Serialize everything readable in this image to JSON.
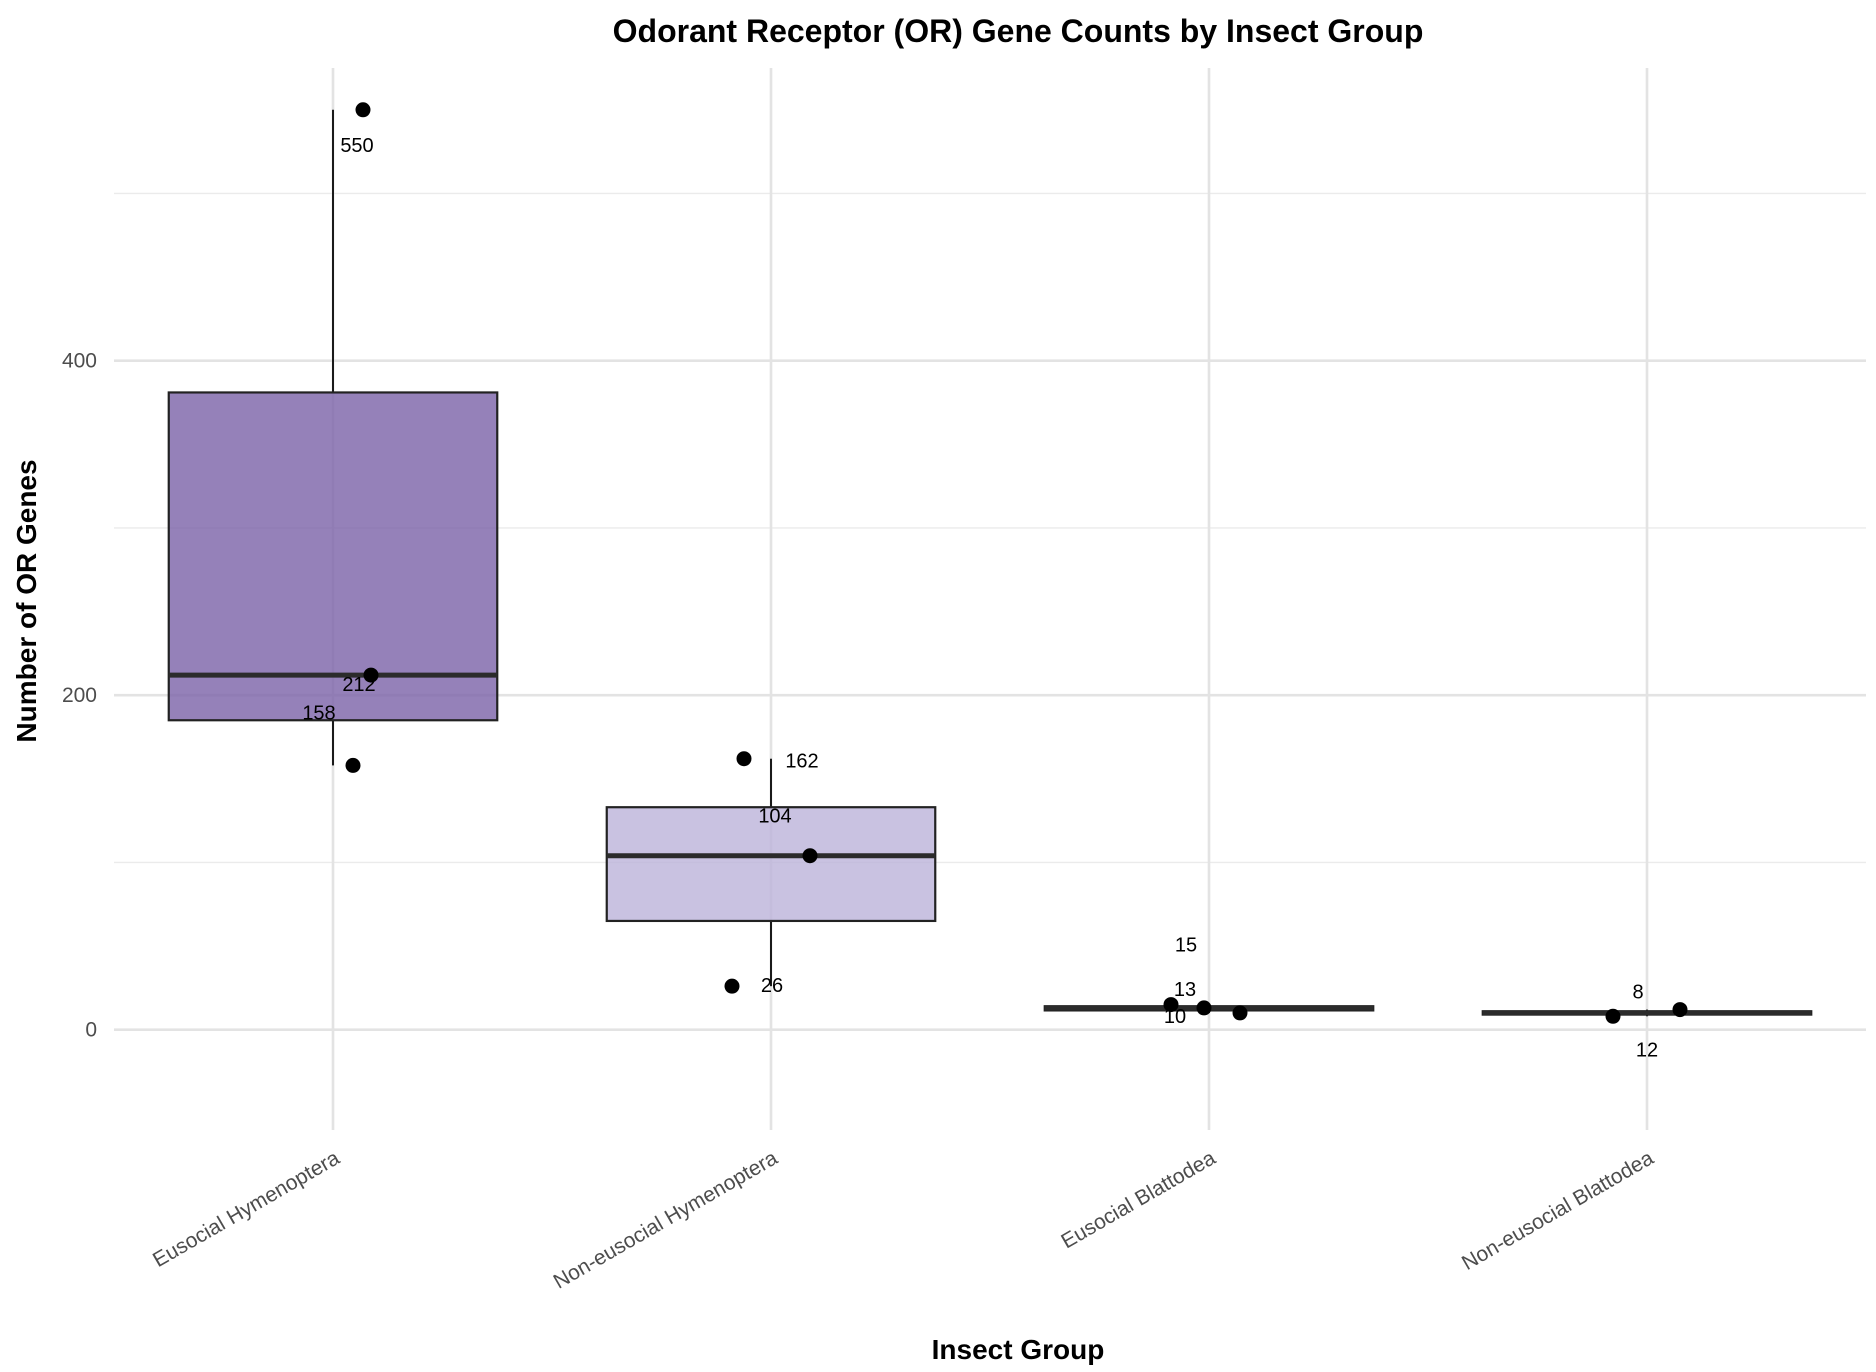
{
  "chart_data": {
    "type": "box",
    "title": "Odorant Receptor (OR) Gene Counts by Insect Group",
    "xlabel": "Insect Group",
    "ylabel": "Number of OR Genes",
    "ylim": [
      -60,
      575
    ],
    "yticks": [
      0,
      200,
      400
    ],
    "grid": true,
    "legend": "none",
    "categories": [
      "Eusocial Hymenoptera",
      "Non-eusocial Hymenoptera",
      "Eusocial Blattodea",
      "Non-eusocial Blattodea"
    ],
    "boxes": [
      {
        "category": "Eusocial Hymenoptera",
        "whisker_low": 158,
        "q1": 185,
        "median": 212,
        "q3": 381,
        "whisker_high": 550,
        "color": "#7b62a8"
      },
      {
        "category": "Non-eusocial Hymenoptera",
        "whisker_low": 26,
        "q1": 65,
        "median": 104,
        "q3": 133,
        "whisker_high": 162,
        "color": "#bcb3d9"
      },
      {
        "category": "Eusocial Blattodea",
        "whisker_low": 10,
        "q1": 11.5,
        "median": 13,
        "q3": 14,
        "whisker_high": 15,
        "color": "#efedf6"
      },
      {
        "category": "Non-eusocial Blattodea",
        "whisker_low": 8,
        "q1": 9,
        "median": 10,
        "q3": 11,
        "whisker_high": 12,
        "color": "#fcfbfd"
      }
    ],
    "points": [
      {
        "category": "Eusocial Hymenoptera",
        "value": 550,
        "label": "550"
      },
      {
        "category": "Eusocial Hymenoptera",
        "value": 212,
        "label": "212"
      },
      {
        "category": "Eusocial Hymenoptera",
        "value": 158,
        "label": "158"
      },
      {
        "category": "Non-eusocial Hymenoptera",
        "value": 162,
        "label": "162"
      },
      {
        "category": "Non-eusocial Hymenoptera",
        "value": 104,
        "label": "104"
      },
      {
        "category": "Non-eusocial Hymenoptera",
        "value": 26,
        "label": "26"
      },
      {
        "category": "Eusocial Blattodea",
        "value": 15,
        "label": "15"
      },
      {
        "category": "Eusocial Blattodea",
        "value": 13,
        "label": "13"
      },
      {
        "category": "Eusocial Blattodea",
        "value": 10,
        "label": "10"
      },
      {
        "category": "Non-eusocial Blattodea",
        "value": 8,
        "label": "8"
      },
      {
        "category": "Non-eusocial Blattodea",
        "value": 12,
        "label": "12"
      }
    ]
  }
}
